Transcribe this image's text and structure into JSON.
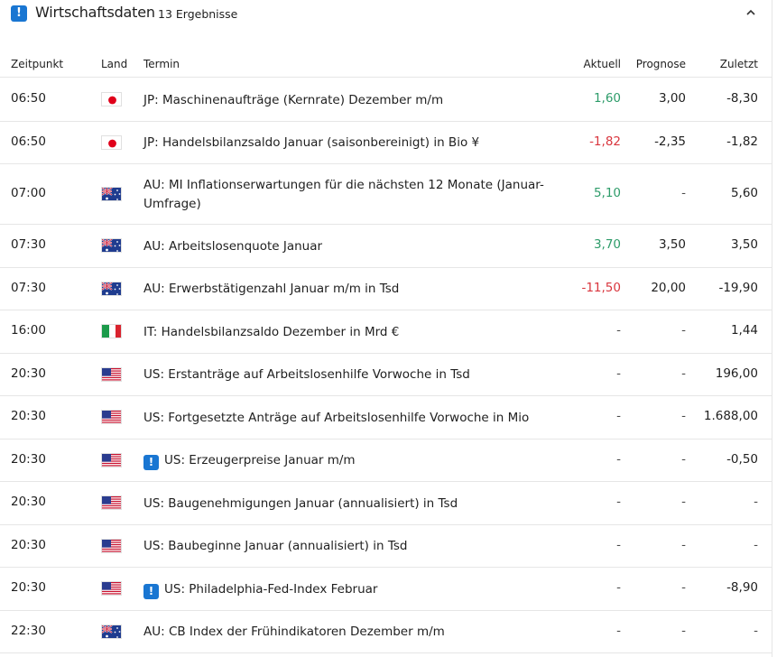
{
  "header": {
    "title": "Wirtschaftsdaten",
    "count": "13 Ergebnisse"
  },
  "columns": {
    "time": "Zeitpunkt",
    "country": "Land",
    "event": "Termin",
    "actual": "Aktuell",
    "forecast": "Prognose",
    "previous": "Zuletzt"
  },
  "colors": {
    "accent": "#1976d2",
    "positive": "#2e9c6a",
    "negative": "#d9363e"
  },
  "rows": [
    {
      "time": "06:50",
      "flag": "jp-flag-icon",
      "event": "JP: Maschinenaufträge (Kernrate) Dezember m/m",
      "actual": "1,60",
      "forecast": "3,00",
      "previous": "-8,30"
    },
    {
      "time": "06:50",
      "flag": "jp-flag-icon",
      "event": "JP: Handelsbilanzsaldo Januar (saisonbereinigt) in Bio ¥",
      "actual": "-1,82",
      "forecast": "-2,35",
      "previous": "-1,82"
    },
    {
      "time": "07:00",
      "flag": "au-flag-icon",
      "event": "AU: MI Inflationserwartungen für die nächsten 12 Monate (Januar-Umfrage)",
      "actual": "5,10",
      "forecast": "-",
      "previous": "5,60"
    },
    {
      "time": "07:30",
      "flag": "au-flag-icon",
      "event": "AU: Arbeitslosenquote Januar",
      "actual": "3,70",
      "forecast": "3,50",
      "previous": "3,50"
    },
    {
      "time": "07:30",
      "flag": "au-flag-icon",
      "event": "AU: Erwerbstätigenzahl Januar m/m in Tsd",
      "actual": "-11,50",
      "forecast": "20,00",
      "previous": "-19,90"
    },
    {
      "time": "16:00",
      "flag": "it-flag-icon",
      "event": "IT: Handelsbilanzsaldo Dezember in Mrd €",
      "actual": "-",
      "forecast": "-",
      "previous": "1,44"
    },
    {
      "time": "20:30",
      "flag": "us-flag-icon",
      "event": "US: Erstanträge auf Arbeitslosenhilfe Vorwoche in Tsd",
      "actual": "-",
      "forecast": "-",
      "previous": "196,00"
    },
    {
      "time": "20:30",
      "flag": "us-flag-icon",
      "event": "US: Fortgesetzte Anträge auf Arbeitslosenhilfe Vorwoche in Mio",
      "actual": "-",
      "forecast": "-",
      "previous": "1.688,00"
    },
    {
      "time": "20:30",
      "flag": "us-flag-icon",
      "event": "US: Erzeugerpreise Januar m/m",
      "actual": "-",
      "forecast": "-",
      "previous": "-0,50",
      "important": true
    },
    {
      "time": "20:30",
      "flag": "us-flag-icon",
      "event": "US: Baugenehmigungen Januar (annualisiert) in Tsd",
      "actual": "-",
      "forecast": "-",
      "previous": "-"
    },
    {
      "time": "20:30",
      "flag": "us-flag-icon",
      "event": "US: Baubeginne Januar (annualisiert) in Tsd",
      "actual": "-",
      "forecast": "-",
      "previous": "-"
    },
    {
      "time": "20:30",
      "flag": "us-flag-icon",
      "event": "US: Philadelphia-Fed-Index Februar",
      "actual": "-",
      "forecast": "-",
      "previous": "-8,90",
      "important": true
    },
    {
      "time": "22:30",
      "flag": "au-flag-icon",
      "event": "AU: CB Index der Frühindikatoren Dezember m/m",
      "actual": "-",
      "forecast": "-",
      "previous": "-"
    }
  ]
}
